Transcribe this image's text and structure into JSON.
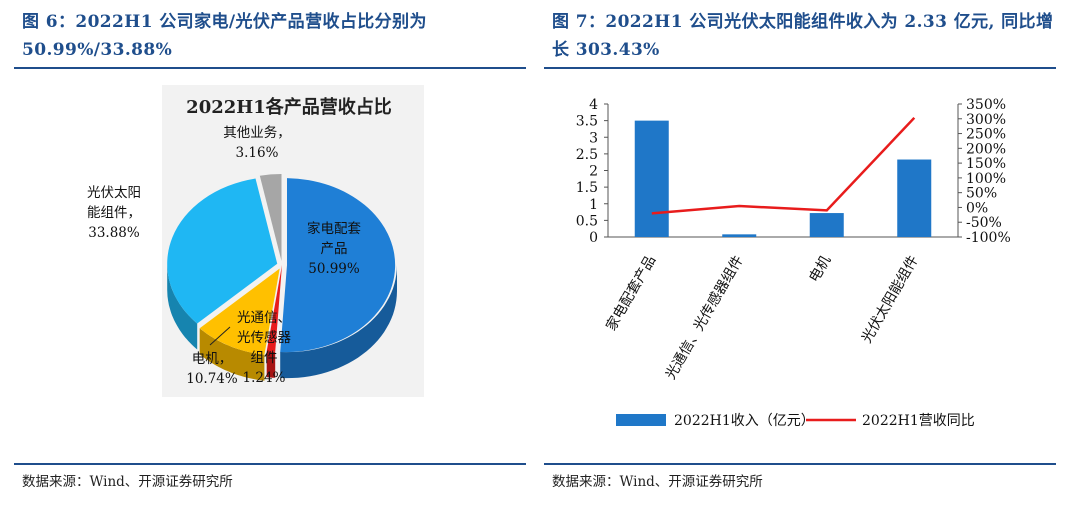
{
  "left_panel": {
    "figure_title": "图 6：2022H1 公司家电/光伏产品营收占比分别为 50.99%/33.88%",
    "source": "数据来源：Wind、开源证券研究所"
  },
  "right_panel": {
    "figure_title": "图 7：2022H1 公司光伏太阳能组件收入为 2.33 亿元, 同比增长 303.43%",
    "source": "数据来源：Wind、开源证券研究所"
  },
  "chart_data": [
    {
      "type": "pie",
      "style": "3d-exploded",
      "title": "2022H1各产品营收占比",
      "slices": [
        {
          "label": "家电配套产品",
          "value": 50.99,
          "display": "50.99%",
          "color": "#1f7fd6"
        },
        {
          "label": "光通信、光传感器组件",
          "value": 1.24,
          "display": "1.24%",
          "color": "#e81c1c"
        },
        {
          "label": "电机",
          "value": 10.74,
          "display": "10.74%",
          "color": "#ffc000"
        },
        {
          "label": "光伏太阳能组件",
          "value": 33.88,
          "display": "33.88%",
          "color": "#1fb7f3"
        },
        {
          "label": "其他业务",
          "value": 3.16,
          "display": "3.16%",
          "color": "#a6a6a6"
        }
      ],
      "label_texts": {
        "appliance": [
          "家电配套",
          "产品",
          "50.99%"
        ],
        "optical": [
          "光通信、",
          "光传感器",
          "组件",
          "1.24%"
        ],
        "motor": [
          "电机，",
          "10.74%"
        ],
        "pv": [
          "光伏太阳",
          "能组件，",
          "33.88%"
        ],
        "other": [
          "其他业务，",
          "3.16%"
        ]
      }
    },
    {
      "type": "bar+line",
      "categories": [
        "家电配套产品",
        "光通信、光传感器组件",
        "电机",
        "光伏太阳能组件"
      ],
      "series": [
        {
          "name": "2022H1收入（亿元）",
          "type": "bar",
          "axis": "left",
          "color": "#1f77c8",
          "values": [
            3.5,
            0.08,
            0.72,
            2.33
          ]
        },
        {
          "name": "2022H1营收同比",
          "type": "line",
          "axis": "right",
          "color": "#e81c1c",
          "values": [
            -20,
            5,
            -10,
            303.43
          ]
        }
      ],
      "left_axis": {
        "ylim": [
          0,
          4
        ],
        "ticks": [
          "0",
          "0.5",
          "1",
          "1.5",
          "2",
          "2.5",
          "3",
          "3.5",
          "4"
        ]
      },
      "right_axis": {
        "ylim": [
          -100,
          350
        ],
        "ticks": [
          "-100%",
          "-50%",
          "0%",
          "50%",
          "100%",
          "150%",
          "200%",
          "250%",
          "300%",
          "350%"
        ]
      },
      "legend_position": "bottom",
      "grid": false
    }
  ]
}
